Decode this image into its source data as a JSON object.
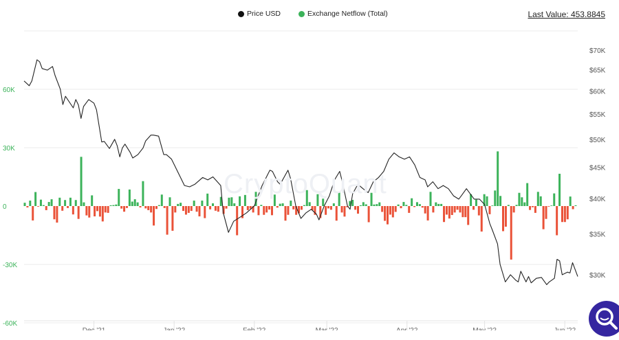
{
  "legend": {
    "items": [
      {
        "label": "Price USD",
        "color": "#111111"
      },
      {
        "label": "Exchange Netflow (Total)",
        "color": "#3cb35a"
      }
    ]
  },
  "last_value": "Last Value: 453.8845",
  "watermark": "CryptoQuant",
  "colors": {
    "inflow": "#3cb35a",
    "outflow": "#ea5238",
    "price": "#222222",
    "grid": "#ebebeb",
    "search_button": "#3526a0"
  },
  "search_icon": "magnifier-icon",
  "chart_data": {
    "type": "bar+line",
    "x_range": [
      "2021-11-04",
      "2022-06-06"
    ],
    "x_ticks": [
      {
        "date": "2021-12-01",
        "label": "Dec '21"
      },
      {
        "date": "2022-01-01",
        "label": "Jan '22"
      },
      {
        "date": "2022-02-01",
        "label": "Feb '22"
      },
      {
        "date": "2022-03-01",
        "label": "Mar '22"
      },
      {
        "date": "2022-04-01",
        "label": "Apr '22"
      },
      {
        "date": "2022-05-01",
        "label": "May '22"
      },
      {
        "date": "2022-06-01",
        "label": "Jun '22"
      }
    ],
    "left_axis": {
      "ticks": [
        {
          "v": 60000,
          "label": "60K"
        },
        {
          "v": 30000,
          "label": "30K"
        },
        {
          "v": 0,
          "label": "0"
        },
        {
          "v": -30000,
          "label": "-30K"
        },
        {
          "v": -60000,
          "label": "-60K"
        }
      ],
      "range": [
        -60000,
        90000
      ],
      "grid": true
    },
    "right_axis": {
      "scale": "log",
      "ticks": [
        {
          "v": 70000,
          "label": "$70K"
        },
        {
          "v": 65000,
          "label": "$65K"
        },
        {
          "v": 60000,
          "label": "$60K"
        },
        {
          "v": 55000,
          "label": "$55K"
        },
        {
          "v": 50000,
          "label": "$50K"
        },
        {
          "v": 45000,
          "label": "$45K"
        },
        {
          "v": 40000,
          "label": "$40K"
        },
        {
          "v": 35000,
          "label": "$35K"
        },
        {
          "v": 30000,
          "label": "$30K"
        }
      ]
    },
    "series": [
      {
        "name": "Price USD",
        "type": "line",
        "axis": "right",
        "points": [
          [
            "2021-11-04",
            62300
          ],
          [
            "2021-11-06",
            61200
          ],
          [
            "2021-11-07",
            62300
          ],
          [
            "2021-11-09",
            67500
          ],
          [
            "2021-11-10",
            67000
          ],
          [
            "2021-11-11",
            65300
          ],
          [
            "2021-11-13",
            64900
          ],
          [
            "2021-11-15",
            65800
          ],
          [
            "2021-11-16",
            63600
          ],
          [
            "2021-11-18",
            60400
          ],
          [
            "2021-11-19",
            57000
          ],
          [
            "2021-11-20",
            58800
          ],
          [
            "2021-11-23",
            56300
          ],
          [
            "2021-11-24",
            58100
          ],
          [
            "2021-11-25",
            56900
          ],
          [
            "2021-11-26",
            54100
          ],
          [
            "2021-11-27",
            56600
          ],
          [
            "2021-11-29",
            58100
          ],
          [
            "2021-12-01",
            57300
          ],
          [
            "2021-12-02",
            55900
          ],
          [
            "2021-12-04",
            49500
          ],
          [
            "2021-12-05",
            49600
          ],
          [
            "2021-12-07",
            48300
          ],
          [
            "2021-12-09",
            50000
          ],
          [
            "2021-12-10",
            48800
          ],
          [
            "2021-12-11",
            46800
          ],
          [
            "2021-12-12",
            48400
          ],
          [
            "2021-12-13",
            49100
          ],
          [
            "2021-12-15",
            47600
          ],
          [
            "2021-12-16",
            46600
          ],
          [
            "2021-12-18",
            47200
          ],
          [
            "2021-12-20",
            48400
          ],
          [
            "2021-12-21",
            49700
          ],
          [
            "2021-12-23",
            50800
          ],
          [
            "2021-12-24",
            50800
          ],
          [
            "2021-12-26",
            50600
          ],
          [
            "2021-12-28",
            47200
          ],
          [
            "2021-12-29",
            47200
          ],
          [
            "2021-12-31",
            46400
          ],
          [
            "2022-01-03",
            43700
          ],
          [
            "2022-01-05",
            42000
          ],
          [
            "2022-01-07",
            41800
          ],
          [
            "2022-01-09",
            42200
          ],
          [
            "2022-01-12",
            43300
          ],
          [
            "2022-01-14",
            42900
          ],
          [
            "2022-01-16",
            43400
          ],
          [
            "2022-01-19",
            42000
          ],
          [
            "2022-01-20",
            37900
          ],
          [
            "2022-01-22",
            35200
          ],
          [
            "2022-01-24",
            36700
          ],
          [
            "2022-01-27",
            37400
          ],
          [
            "2022-01-29",
            37900
          ],
          [
            "2022-02-01",
            38900
          ],
          [
            "2022-02-04",
            42000
          ],
          [
            "2022-02-07",
            44500
          ],
          [
            "2022-02-08",
            44300
          ],
          [
            "2022-02-10",
            42600
          ],
          [
            "2022-02-11",
            42200
          ],
          [
            "2022-02-14",
            44500
          ],
          [
            "2022-02-15",
            43100
          ],
          [
            "2022-02-17",
            38900
          ],
          [
            "2022-02-19",
            37100
          ],
          [
            "2022-02-21",
            37900
          ],
          [
            "2022-02-23",
            38400
          ],
          [
            "2022-02-25",
            37700
          ],
          [
            "2022-02-26",
            36900
          ],
          [
            "2022-02-28",
            38900
          ],
          [
            "2022-03-02",
            40400
          ],
          [
            "2022-03-04",
            42900
          ],
          [
            "2022-03-06",
            44300
          ],
          [
            "2022-03-07",
            42600
          ],
          [
            "2022-03-09",
            38900
          ],
          [
            "2022-03-10",
            38400
          ],
          [
            "2022-03-11",
            40700
          ],
          [
            "2022-03-13",
            42200
          ],
          [
            "2022-03-15",
            41500
          ],
          [
            "2022-03-17",
            40900
          ],
          [
            "2022-03-19",
            42600
          ],
          [
            "2022-03-21",
            43300
          ],
          [
            "2022-03-23",
            44300
          ],
          [
            "2022-03-25",
            46400
          ],
          [
            "2022-03-27",
            47500
          ],
          [
            "2022-03-29",
            46800
          ],
          [
            "2022-03-31",
            46400
          ],
          [
            "2022-04-02",
            46800
          ],
          [
            "2022-04-04",
            45400
          ],
          [
            "2022-04-06",
            43300
          ],
          [
            "2022-04-08",
            42900
          ],
          [
            "2022-04-09",
            41800
          ],
          [
            "2022-04-11",
            42600
          ],
          [
            "2022-04-13",
            41500
          ],
          [
            "2022-04-15",
            42000
          ],
          [
            "2022-04-17",
            41500
          ],
          [
            "2022-04-19",
            40400
          ],
          [
            "2022-04-21",
            39900
          ],
          [
            "2022-04-22",
            40400
          ],
          [
            "2022-04-24",
            41500
          ],
          [
            "2022-04-26",
            40400
          ],
          [
            "2022-04-27",
            39900
          ],
          [
            "2022-04-29",
            39900
          ],
          [
            "2022-05-01",
            39100
          ],
          [
            "2022-05-03",
            36400
          ],
          [
            "2022-05-04",
            35500
          ],
          [
            "2022-05-06",
            33700
          ],
          [
            "2022-05-07",
            31200
          ],
          [
            "2022-05-09",
            29200
          ],
          [
            "2022-05-11",
            30000
          ],
          [
            "2022-05-13",
            29400
          ],
          [
            "2022-05-14",
            29200
          ],
          [
            "2022-05-15",
            30400
          ],
          [
            "2022-05-17",
            29200
          ],
          [
            "2022-05-18",
            29800
          ],
          [
            "2022-05-19",
            29100
          ],
          [
            "2022-05-21",
            29600
          ],
          [
            "2022-05-23",
            29700
          ],
          [
            "2022-05-25",
            28900
          ],
          [
            "2022-05-26",
            29200
          ],
          [
            "2022-05-28",
            29600
          ],
          [
            "2022-05-29",
            31800
          ],
          [
            "2022-05-30",
            31600
          ],
          [
            "2022-05-31",
            30000
          ],
          [
            "2022-06-02",
            30300
          ],
          [
            "2022-06-03",
            30200
          ],
          [
            "2022-06-04",
            31400
          ],
          [
            "2022-06-06",
            29800
          ]
        ]
      },
      {
        "name": "Exchange Netflow (Total)",
        "type": "bar",
        "axis": "left",
        "values": [
          1700,
          -700,
          2800,
          -7400,
          7200,
          -300,
          3300,
          500,
          -2100,
          2100,
          3500,
          -6800,
          -8500,
          4300,
          -2400,
          3100,
          -1000,
          4300,
          -4300,
          3100,
          -6600,
          25300,
          1900,
          -4800,
          -5900,
          5500,
          -5300,
          -2600,
          -5400,
          -7900,
          -3300,
          -3500,
          400,
          500,
          800,
          8800,
          -1300,
          -2900,
          -1000,
          8500,
          2300,
          3500,
          1900,
          -700,
          12800,
          -1200,
          -2100,
          -3300,
          -10000,
          -1500,
          500,
          5900,
          -1000,
          -14700,
          4500,
          -12700,
          -3300,
          1100,
          1700,
          -2500,
          -4400,
          -3500,
          -2500,
          2800,
          -2900,
          -5300,
          2800,
          -6200,
          6400,
          -1700,
          1400,
          -2400,
          -2900,
          4700,
          -4000,
          -1300,
          4300,
          4500,
          1400,
          -15000,
          5000,
          -6200,
          5700,
          -2100,
          -1300,
          -3300,
          7300,
          -4700,
          600,
          -4500,
          -3300,
          -1800,
          -4700,
          5900,
          -800,
          1200,
          1400,
          -7500,
          -4500,
          2800,
          -1700,
          -4500,
          -3700,
          -1900,
          500,
          8200,
          2000,
          -2100,
          -4500,
          6100,
          -6200,
          3800,
          -4500,
          -1200,
          -1900,
          1400,
          -7500,
          7300,
          -3300,
          -5400,
          -600,
          2600,
          3200,
          -1900,
          -3900,
          400,
          2000,
          900,
          -8300,
          6800,
          800,
          1000,
          1900,
          -3000,
          -7600,
          -9400,
          -4400,
          -5800,
          -3000,
          800,
          -1100,
          2100,
          600,
          -3500,
          4000,
          -500,
          2000,
          1000,
          -800,
          -3800,
          -7400,
          7300,
          -3300,
          1900,
          1100,
          1100,
          -8200,
          -4400,
          -6400,
          -4600,
          -3300,
          -1900,
          -3300,
          -5700,
          -5700,
          -9700,
          6100,
          -1900,
          3300,
          -4800,
          -13100,
          6100,
          5000,
          -4200,
          300,
          8000,
          28100,
          5200,
          -12900,
          -10600,
          600,
          -27500,
          -3300,
          600,
          6800,
          4500,
          1900,
          11800,
          -2000,
          -600,
          -3500,
          7300,
          5000,
          -11900,
          -6600,
          -300,
          300,
          6500,
          -15000,
          16600,
          -8200,
          -8200,
          -6800,
          4900,
          -1600,
          400
        ]
      }
    ]
  }
}
